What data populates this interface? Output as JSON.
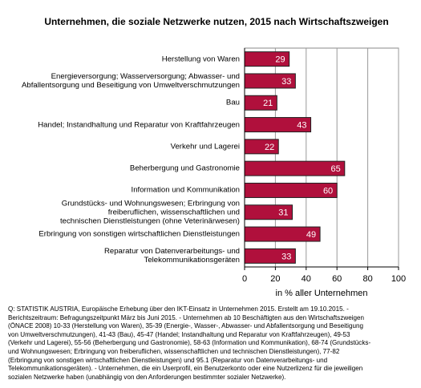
{
  "chart_data": {
    "type": "bar",
    "orientation": "horizontal",
    "title": "Unternehmen, die soziale Netzwerke nutzen, 2015 nach Wirtschaftszweigen",
    "xlabel": "in % aller Unternehmen",
    "categories": [
      "Herstellung von Waren",
      "Energieversorgung; Wasserversorgung; Abwasser- und\nAbfallentsorgung und Beseitigung von Umweltverschmutzungen",
      "Bau",
      "Handel; Instandhaltung und Reparatur von Kraftfahrzeugen",
      "Verkehr und Lagerei",
      "Beherbergung und Gastronomie",
      "Information und Kommunikation",
      "Grundstücks- und Wohnungswesen; Erbringung von\nfreiberuflichen, wissenschaftlichen und\ntechnischen Dienstleistungen (ohne Veterinärwesen)",
      "Erbringung von sonstigen wirtschaftlichen Dienstleistungen",
      "Reparatur von Datenverarbeitungs- und\nTelekommunikationsgeräten"
    ],
    "values": [
      29,
      33,
      21,
      43,
      22,
      65,
      60,
      31,
      49,
      33
    ],
    "color": "#b0103c",
    "xlim": [
      0,
      100
    ],
    "xticks": [
      0,
      20,
      40,
      60,
      80,
      100
    ],
    "grid": true,
    "footnote": "Q: STATISTIK AUSTRIA, Europäische Erhebung über den IKT-Einsatz in Unternehmen 2015. Erstellt am 19.10.2015. -\nBerichtszeitraum: Befragungszeitpunkt März bis Juni 2015. - Unternehmen ab 10 Beschäftigten aus den Wirtschaftszweigen\n(ÖNACE 2008) 10-33 (Herstellung von Waren), 35-39 (Energie-, Wasser-, Abwasser- und Abfallentsorgung und Beseitigung\nvon Umweltverschmutzungen), 41-43 (Bau), 45-47 (Handel; Instandhaltung und Reparatur von Kraftfahrzeugen), 49-53\n(Verkehr und Lagerei), 55-56 (Beherbergung und Gastronomie), 58-63 (Information und Kommunikation), 68-74 (Grundstücks-\nund Wohnungswesen; Erbringung von freiberuflichen, wissenschaftlichen und technischen Dienstleistungen), 77-82\n(Erbringung von sonstigen wirtschaftlichen Dienstleistungen) und 95.1 (Reparatur von Datenverarbeitungs- und\nTelekommunikationsgeräten). - Unternehmen, die ein Userprofil, ein Benutzerkonto oder eine Nutzerlizenz für die jeweiligen\nsozialen Netzwerke haben (unabhängig von den Anforderungen bestimmter sozialer Netzwerke)."
  }
}
